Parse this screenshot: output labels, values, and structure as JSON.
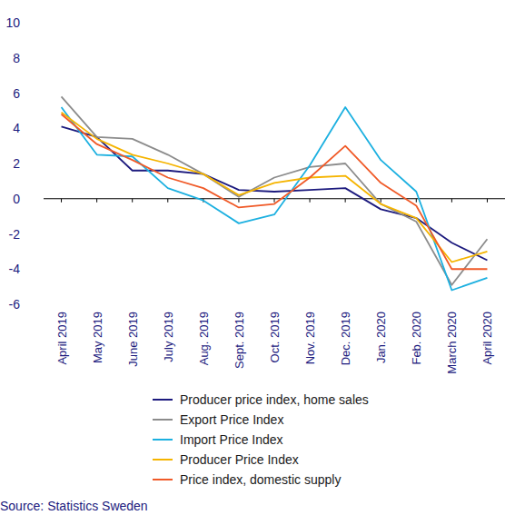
{
  "chart_data": {
    "type": "line",
    "categories": [
      "April 2019",
      "May 2019",
      "June 2019",
      "July 2019",
      "Aug. 2019",
      "Sept. 2019",
      "Oct. 2019",
      "Nov. 2019",
      "Dec. 2019",
      "Jan. 2020",
      "Feb. 2020",
      "March 2020",
      "April 2020"
    ],
    "series": [
      {
        "name": "Producer price index, home sales",
        "color": "#1c1a7e",
        "values": [
          4.1,
          3.5,
          1.6,
          1.6,
          1.4,
          0.5,
          0.4,
          0.5,
          0.6,
          -0.6,
          -1.1,
          -2.5,
          -3.5
        ]
      },
      {
        "name": "Export Price Index",
        "color": "#8c8c8c",
        "values": [
          5.8,
          3.5,
          3.4,
          2.5,
          1.4,
          0.1,
          1.2,
          1.8,
          2.0,
          -0.3,
          -1.3,
          -4.9,
          -2.3
        ]
      },
      {
        "name": "Import Price Index",
        "color": "#1cb0e0",
        "values": [
          5.2,
          2.5,
          2.4,
          0.6,
          -0.1,
          -1.4,
          -0.9,
          1.9,
          5.2,
          2.2,
          0.4,
          -5.2,
          -4.5
        ]
      },
      {
        "name": "Producer Price Index",
        "color": "#f5b400",
        "values": [
          4.9,
          3.4,
          2.5,
          2.0,
          1.4,
          0.2,
          0.9,
          1.2,
          1.3,
          -0.3,
          -1.1,
          -3.6,
          -3.0
        ]
      },
      {
        "name": "Price index, domestic supply",
        "color": "#f05a28",
        "values": [
          4.8,
          3.1,
          2.2,
          1.2,
          0.6,
          -0.5,
          -0.3,
          1.2,
          3.0,
          0.9,
          -0.4,
          -4.0,
          -4.0
        ]
      }
    ],
    "ylim": [
      -6,
      10
    ],
    "yticks": [
      -6,
      -4,
      -2,
      0,
      2,
      4,
      6,
      8,
      10
    ],
    "grid": false,
    "legend": "bottom",
    "source": "Source: Statistics Sweden"
  }
}
